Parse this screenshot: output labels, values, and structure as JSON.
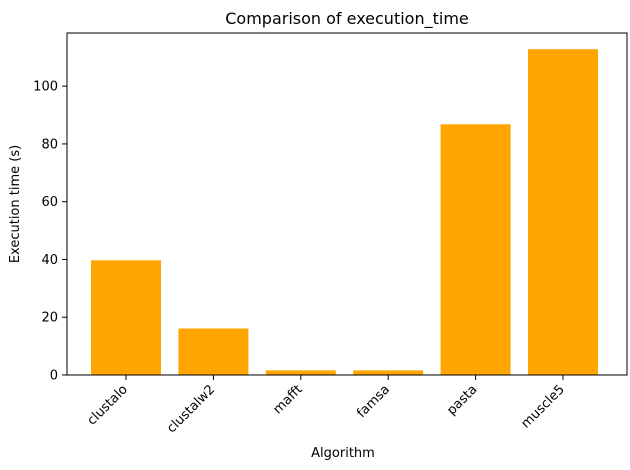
{
  "chart_data": {
    "type": "bar",
    "title": "Comparison of execution_time",
    "xlabel": "Algorithm",
    "ylabel": "Execution time (s)",
    "categories": [
      "clustalo",
      "clustalw2",
      "mafft",
      "famsa",
      "pasta",
      "muscle5"
    ],
    "values": [
      39.7,
      16.1,
      1.6,
      1.6,
      86.8,
      112.8
    ],
    "ylim": [
      0,
      118.4
    ],
    "yticks": [
      0,
      20,
      40,
      60,
      80,
      100
    ],
    "ytick_labels": [
      "0",
      "20",
      "40",
      "60",
      "80",
      "100"
    ],
    "bar_color": "#ffa500",
    "grid": false,
    "legend": "none"
  }
}
